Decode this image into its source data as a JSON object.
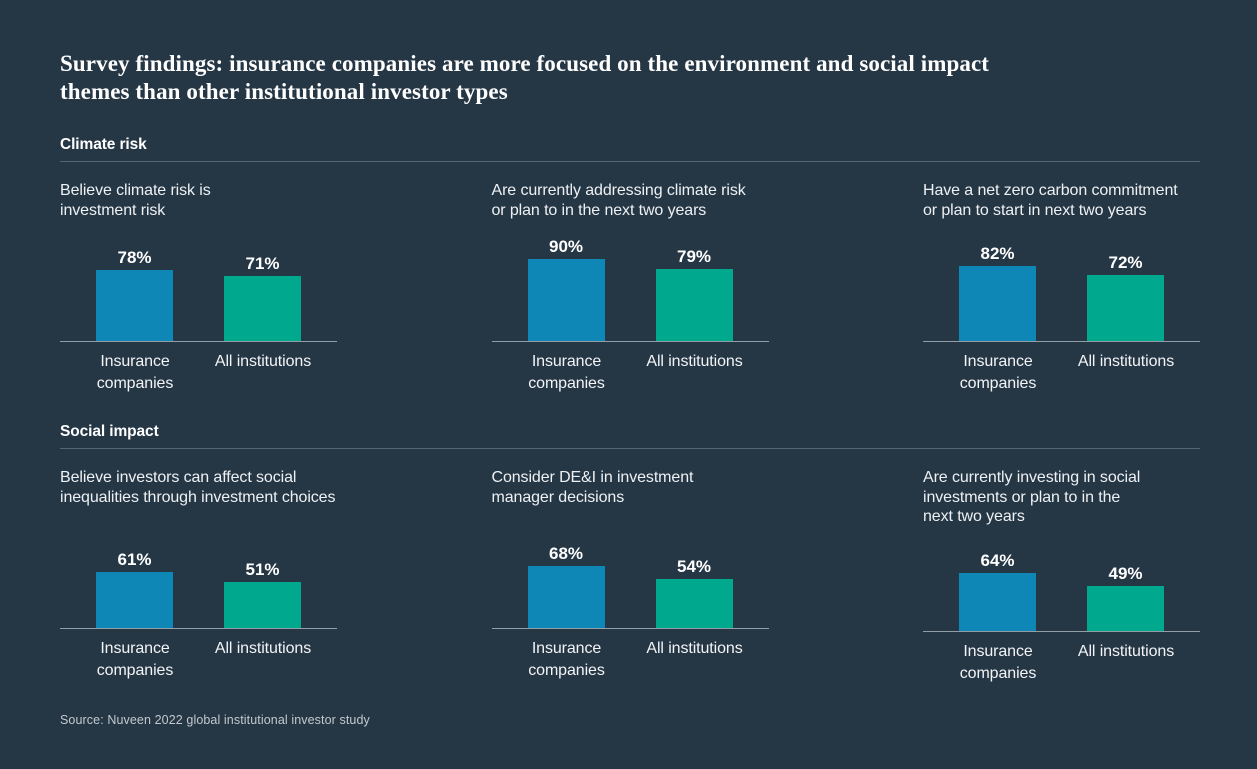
{
  "title": "Survey findings: insurance companies are more focused on the environment and social impact themes than other institutional investor types",
  "source": "Source: Nuveen 2022 global institutional investor study",
  "unit": "%",
  "colors": {
    "background": "#253645",
    "insurance_bar": "#0E87B7",
    "all_institutions_bar": "#00A88E",
    "series": [
      "#0E87B7",
      "#00A88E"
    ],
    "divider": "#546470",
    "baseline": "#939DA5"
  },
  "sections": [
    {
      "label": "Climate risk",
      "charts": [
        0,
        1,
        2
      ]
    },
    {
      "label": "Social impact",
      "charts": [
        3,
        4,
        5
      ]
    }
  ],
  "chart_data": [
    {
      "type": "bar",
      "section": "Climate risk",
      "title": "Believe climate risk is investment risk",
      "title_lines": [
        "Believe climate risk is",
        "investment risk"
      ],
      "categories": [
        "Insurance companies",
        "All institutions"
      ],
      "values": [
        78,
        71
      ],
      "ylim": [
        0,
        100
      ]
    },
    {
      "type": "bar",
      "section": "Climate risk",
      "title": "Are currently addressing climate risk or plan to in the next two years",
      "title_lines": [
        "Are currently addressing climate risk",
        "or plan to in the next two years"
      ],
      "categories": [
        "Insurance companies",
        "All institutions"
      ],
      "values": [
        90,
        79
      ],
      "ylim": [
        0,
        100
      ]
    },
    {
      "type": "bar",
      "section": "Climate risk",
      "title": "Have a net zero carbon commitment or plan to start in next two years",
      "title_lines": [
        "Have a net zero carbon commitment",
        "or plan to start in next two years"
      ],
      "categories": [
        "Insurance companies",
        "All institutions"
      ],
      "values": [
        82,
        72
      ],
      "ylim": [
        0,
        100
      ]
    },
    {
      "type": "bar",
      "section": "Social impact",
      "title": "Believe investors can affect social inequalities through investment choices",
      "title_lines": [
        "Believe investors can affect social",
        "inequalities through investment choices"
      ],
      "categories": [
        "Insurance companies",
        "All institutions"
      ],
      "values": [
        61,
        51
      ],
      "ylim": [
        0,
        100
      ]
    },
    {
      "type": "bar",
      "section": "Social impact",
      "title": "Consider DE&I in investment manager decisions",
      "title_lines": [
        "Consider DE&I in investment",
        "manager decisions"
      ],
      "categories": [
        "Insurance companies",
        "All institutions"
      ],
      "values": [
        68,
        54
      ],
      "ylim": [
        0,
        100
      ]
    },
    {
      "type": "bar",
      "section": "Social impact",
      "title": "Are currently investing in social investments or plan to in the next two years",
      "title_lines": [
        "Are currently investing in social",
        "investments or plan to in the",
        "next two years"
      ],
      "categories": [
        "Insurance companies",
        "All institutions"
      ],
      "values": [
        64,
        49
      ],
      "ylim": [
        0,
        100
      ]
    }
  ]
}
